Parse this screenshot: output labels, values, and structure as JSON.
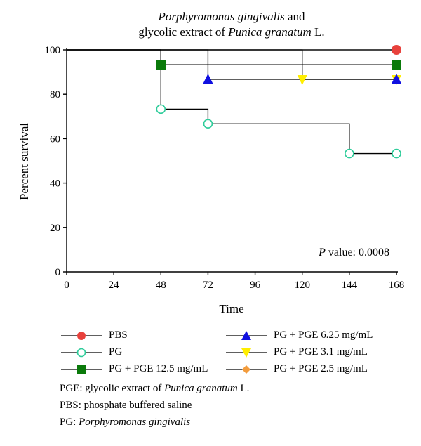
{
  "chart_data": {
    "type": "line",
    "title_line1_italic": "Porphyromonas gingivalis",
    "title_line1_rest": " and",
    "title_line2_rest": "glycolic extract of ",
    "title_line2_italic": "Punica granatum",
    "title_line2_end": " L.",
    "xlabel": "Time",
    "ylabel": "Percent survival",
    "xlim": [
      0,
      168
    ],
    "ylim": [
      0,
      100
    ],
    "xticks": [
      0,
      24,
      48,
      72,
      96,
      120,
      144,
      168
    ],
    "yticks": [
      0,
      20,
      40,
      60,
      80,
      100
    ],
    "grid": false,
    "annotation_italic": "P",
    "annotation_rest": " value: 0.0008",
    "series": [
      {
        "name": "PBS",
        "marker": "circle",
        "color": "#e8413c",
        "x": [
          0,
          168
        ],
        "y": [
          100,
          100
        ],
        "marker_x": [
          168
        ],
        "marker_y": [
          100
        ]
      },
      {
        "name": "PG",
        "marker": "open-circle",
        "color": "#2ecc9a",
        "x": [
          0,
          48,
          72,
          144,
          168
        ],
        "y": [
          100,
          73.3,
          66.7,
          53.3,
          53.3
        ],
        "marker_x": [
          48,
          72,
          144,
          168
        ],
        "marker_y": [
          73.3,
          66.7,
          53.3,
          53.3
        ]
      },
      {
        "name": "PG + PGE 12.5 mg/mL",
        "marker": "square",
        "color": "#0a7a0a",
        "x": [
          0,
          48,
          168
        ],
        "y": [
          100,
          93.3,
          93.3
        ],
        "marker_x": [
          48,
          168
        ],
        "marker_y": [
          93.3,
          93.3
        ]
      },
      {
        "name": "PG + PGE 6.25 mg/mL",
        "marker": "triangle-up",
        "color": "#1010e0",
        "x": [
          0,
          72,
          168
        ],
        "y": [
          100,
          86.7,
          86.7
        ],
        "marker_x": [
          72,
          168
        ],
        "marker_y": [
          86.7,
          86.7
        ]
      },
      {
        "name": "PG + PGE 3.1 mg/mL",
        "marker": "triangle-down",
        "color": "#ffee00",
        "x": [
          0,
          120,
          168
        ],
        "y": [
          100,
          86.7,
          86.7
        ],
        "marker_x": [
          120,
          168
        ],
        "marker_y": [
          86.7,
          86.7
        ]
      },
      {
        "name": "PG + PGE 2.5 mg/mL",
        "marker": "diamond",
        "color": "#f39c3c",
        "x": [
          0,
          168
        ],
        "y": [
          100,
          100
        ],
        "marker_x": [],
        "marker_y": []
      }
    ]
  },
  "notes": [
    {
      "pre": "PGE: glycolic extract of ",
      "ital": "Punica granatum",
      "post": " L."
    },
    {
      "pre": "PBS: phosphate buffered saline",
      "ital": "",
      "post": ""
    },
    {
      "pre": "PG: ",
      "ital": "Porphyromonas gingivalis",
      "post": ""
    }
  ]
}
